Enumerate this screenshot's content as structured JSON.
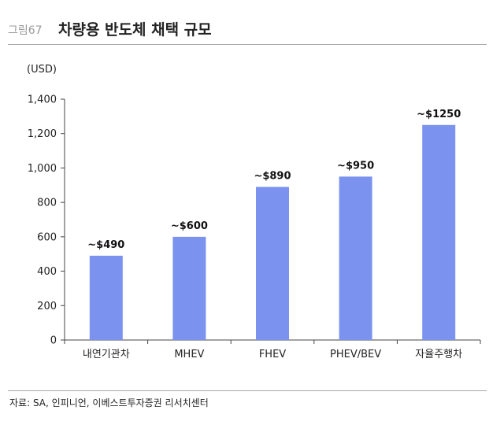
{
  "figure": {
    "number": "그림67",
    "title": "차량용 반도체 채택 규모",
    "source": "자료: SA, 인피니언, 이베스트투자증권 리서치센터"
  },
  "chart_data": {
    "type": "bar",
    "title": "차량용 반도체 채택 규모",
    "unit_label": "(USD)",
    "categories": [
      "내연기관차",
      "MHEV",
      "FHEV",
      "PHEV/BEV",
      "자율주행차"
    ],
    "values": [
      490,
      600,
      890,
      950,
      1250
    ],
    "data_labels": [
      "~$490",
      "~$600",
      "~$890",
      "~$950",
      "~$1250"
    ],
    "ylim": [
      0,
      1400
    ],
    "yticks": [
      0,
      200,
      400,
      600,
      800,
      1000,
      1200,
      1400
    ],
    "ytick_labels": [
      "0",
      "200",
      "400",
      "600",
      "800",
      "1,000",
      "1,200",
      "1,400"
    ],
    "bar_color": "#7b93ee",
    "grid": false,
    "legend": "none"
  }
}
